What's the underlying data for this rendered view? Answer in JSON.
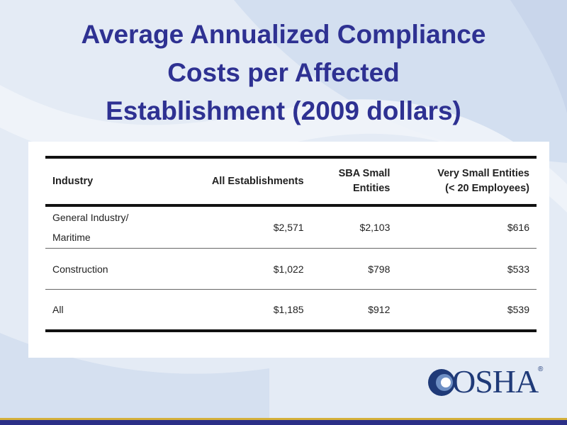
{
  "slide": {
    "title_lines": [
      "Average Annualized Compliance",
      "Costs per Affected",
      "Establishment (2009 dollars)"
    ]
  },
  "table": {
    "headers": {
      "industry": "Industry",
      "all": "All Establishments",
      "sba_line1": "SBA Small",
      "sba_line2": "Entities",
      "vse_line1": "Very Small Entities",
      "vse_line2": "(< 20 Employees)"
    },
    "rows": [
      {
        "industry_line1": "General Industry/",
        "industry_line2": "Maritime",
        "all": "$2,571",
        "sba": "$2,103",
        "vse": "$616"
      },
      {
        "industry_line1": "Construction",
        "industry_line2": "",
        "all": "$1,022",
        "sba": "$798",
        "vse": "$533"
      },
      {
        "industry_line1": "All",
        "industry_line2": "",
        "all": "$1,185",
        "sba": "$912",
        "vse": "$539"
      }
    ]
  },
  "logo": {
    "text": "OSHA",
    "mark": "®",
    "icon": "osha-logo-icon"
  },
  "colors": {
    "title": "#2e3192",
    "background": "#e4ebf5",
    "footer_gold": "#d4b03a",
    "footer_navy": "#2b2f87",
    "logo": "#1f3a78"
  }
}
